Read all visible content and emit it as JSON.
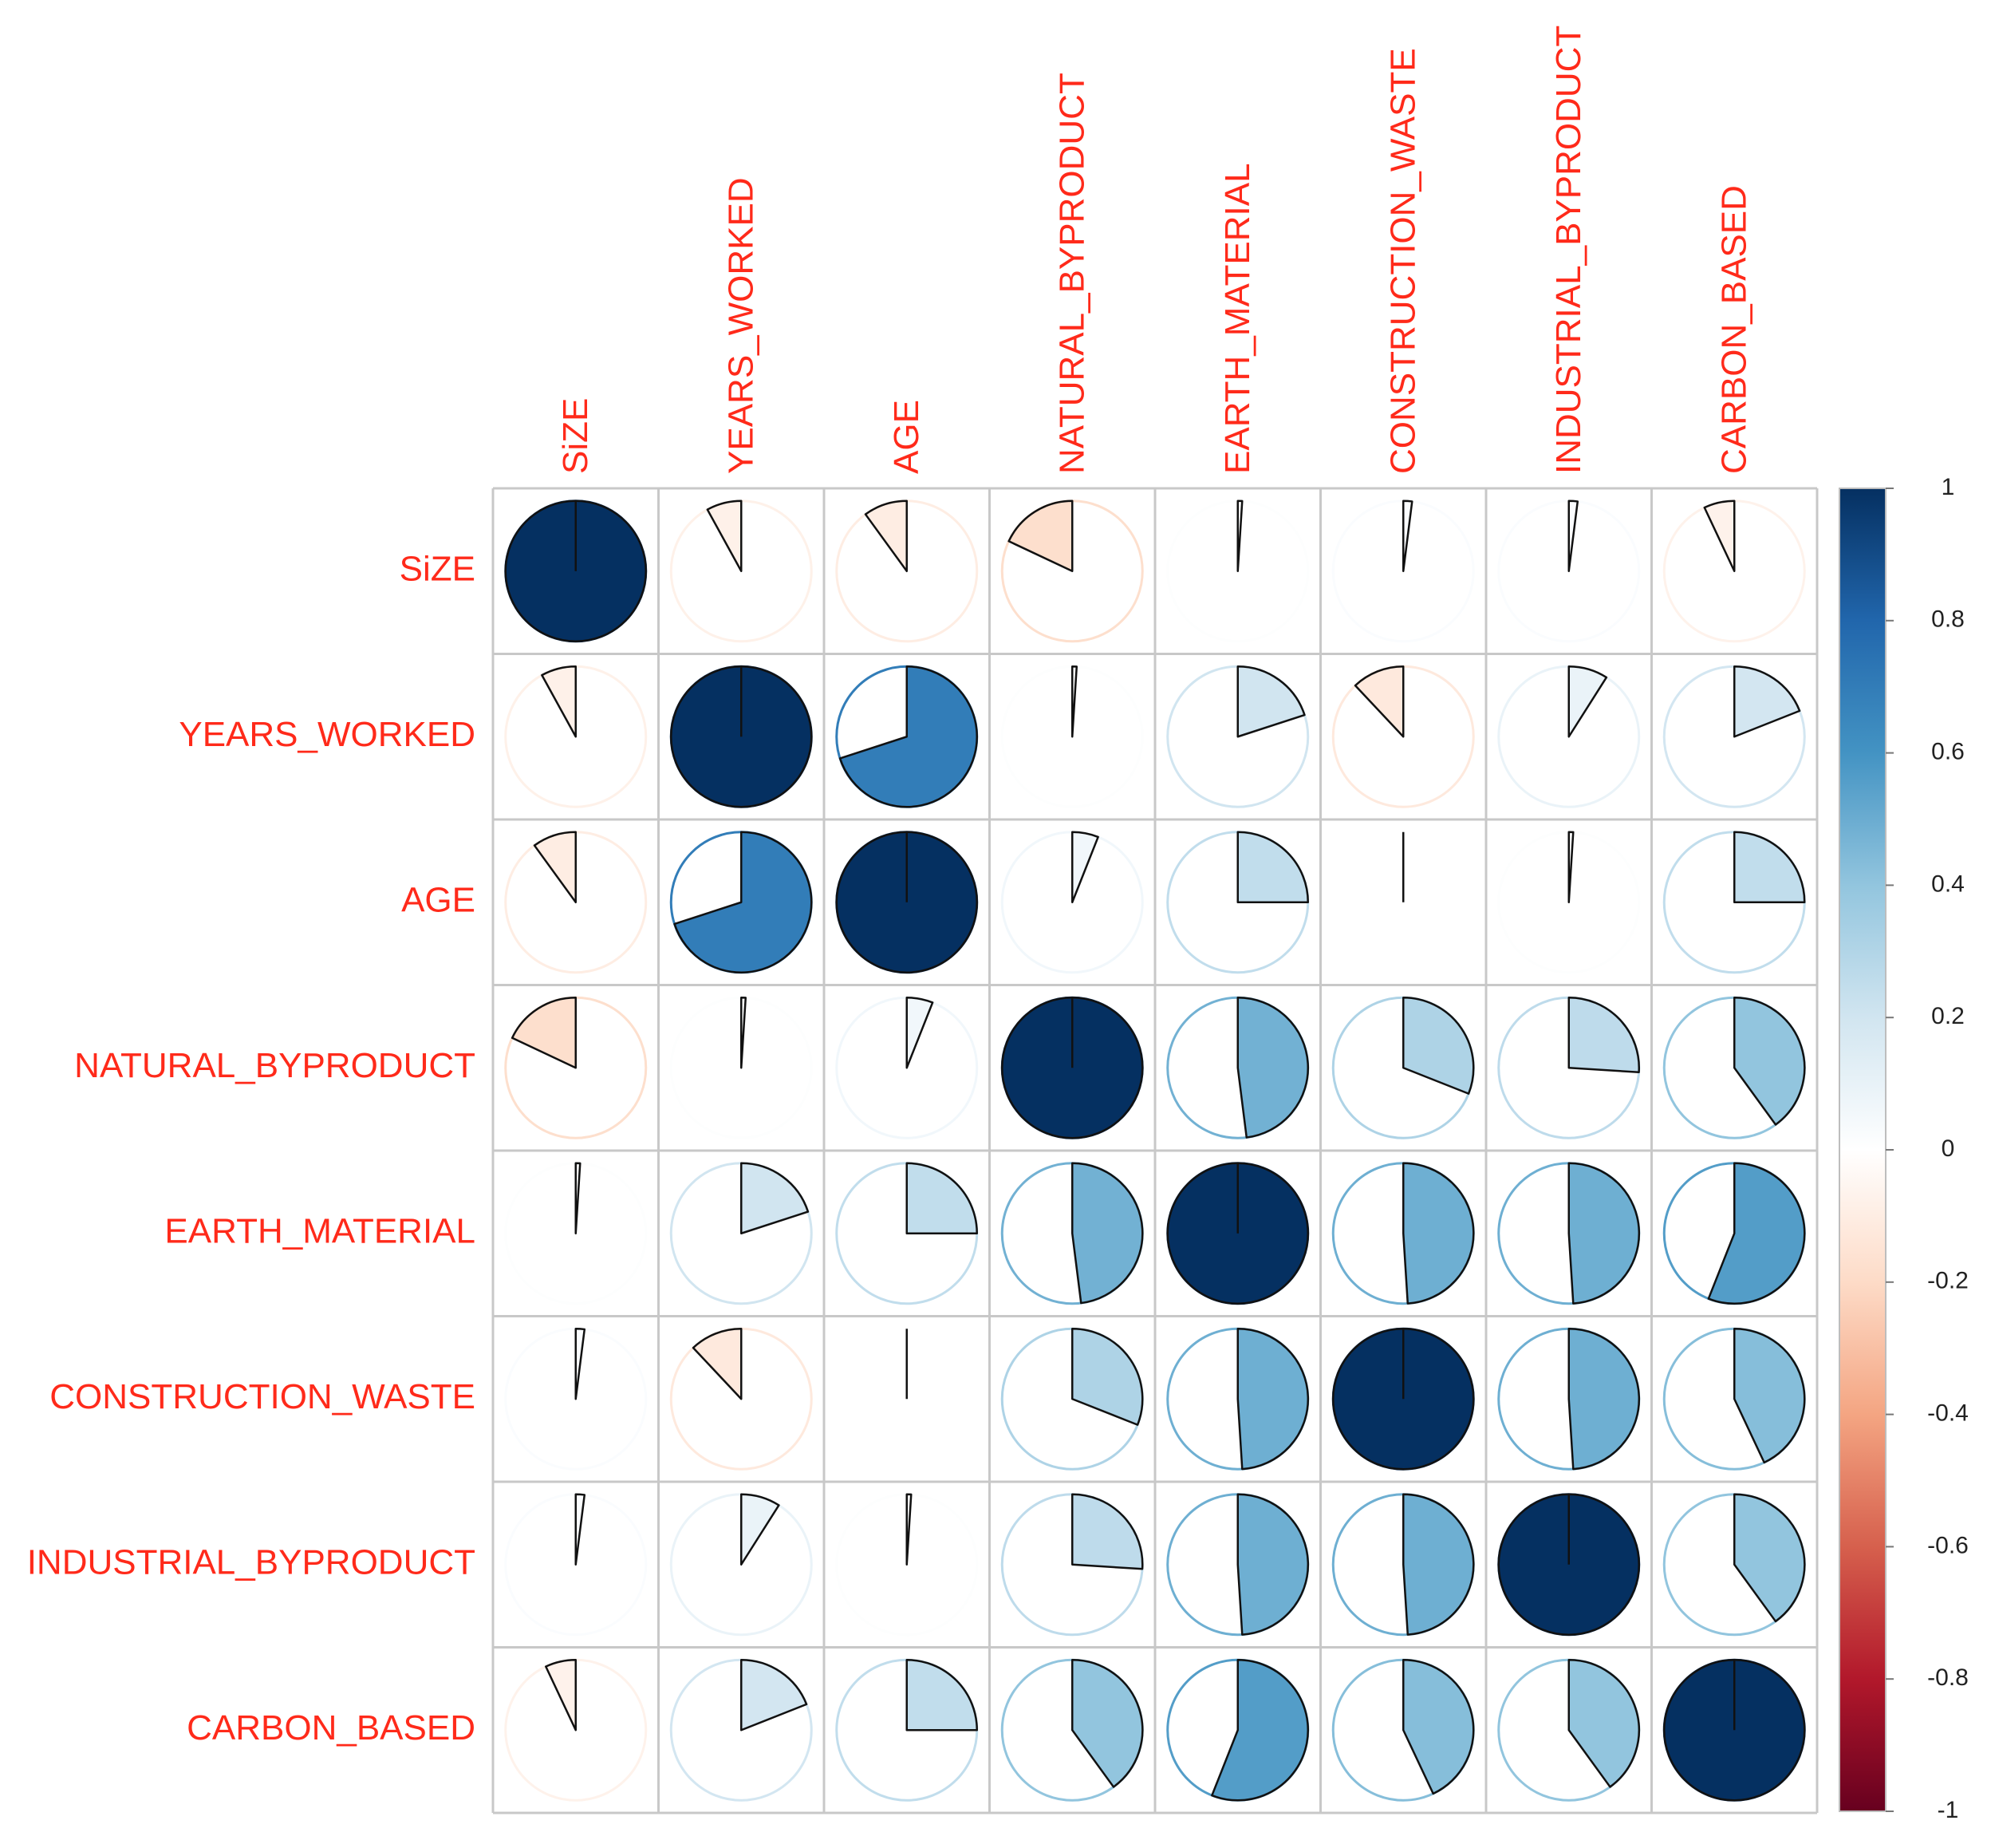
{
  "chart_data": {
    "type": "heatmap",
    "style": "correlation pie matrix",
    "variables": [
      "SiZE",
      "YEARS_WORKED",
      "AGE",
      "NATURAL_BYPRODUCT",
      "EARTH_MATERIAL",
      "CONSTRUCTION_WASTE",
      "INDUSTRIAL_BYPRODUCT",
      "CARBON_BASED"
    ],
    "matrix": [
      [
        1.0,
        -0.08,
        -0.1,
        -0.18,
        0.01,
        0.02,
        0.02,
        -0.07
      ],
      [
        -0.08,
        1.0,
        0.7,
        0.01,
        0.2,
        -0.12,
        0.09,
        0.19
      ],
      [
        -0.1,
        0.7,
        1.0,
        0.06,
        0.25,
        0.0,
        0.01,
        0.25
      ],
      [
        -0.18,
        0.01,
        0.06,
        1.0,
        0.48,
        0.31,
        0.26,
        0.4
      ],
      [
        0.01,
        0.2,
        0.25,
        0.48,
        1.0,
        0.49,
        0.49,
        0.56
      ],
      [
        0.02,
        -0.12,
        0.0,
        0.31,
        0.49,
        1.0,
        0.49,
        0.43
      ],
      [
        0.02,
        0.09,
        0.01,
        0.26,
        0.49,
        0.49,
        1.0,
        0.4
      ],
      [
        -0.07,
        0.19,
        0.25,
        0.4,
        0.56,
        0.43,
        0.4,
        1.0
      ]
    ],
    "colorbar": {
      "min": -1,
      "max": 1,
      "ticks": [
        "1",
        "0.8",
        "0.6",
        "0.4",
        "0.2",
        "0",
        "-0.2",
        "-0.4",
        "-0.6",
        "-0.8",
        "-1"
      ],
      "colors": [
        "#67001f",
        "#b2182b",
        "#d6604d",
        "#f4a582",
        "#fddbc7",
        "#ffffff",
        "#d1e5f0",
        "#92c5de",
        "#4393c3",
        "#2166ac",
        "#053061"
      ]
    },
    "legend_position": "right"
  }
}
